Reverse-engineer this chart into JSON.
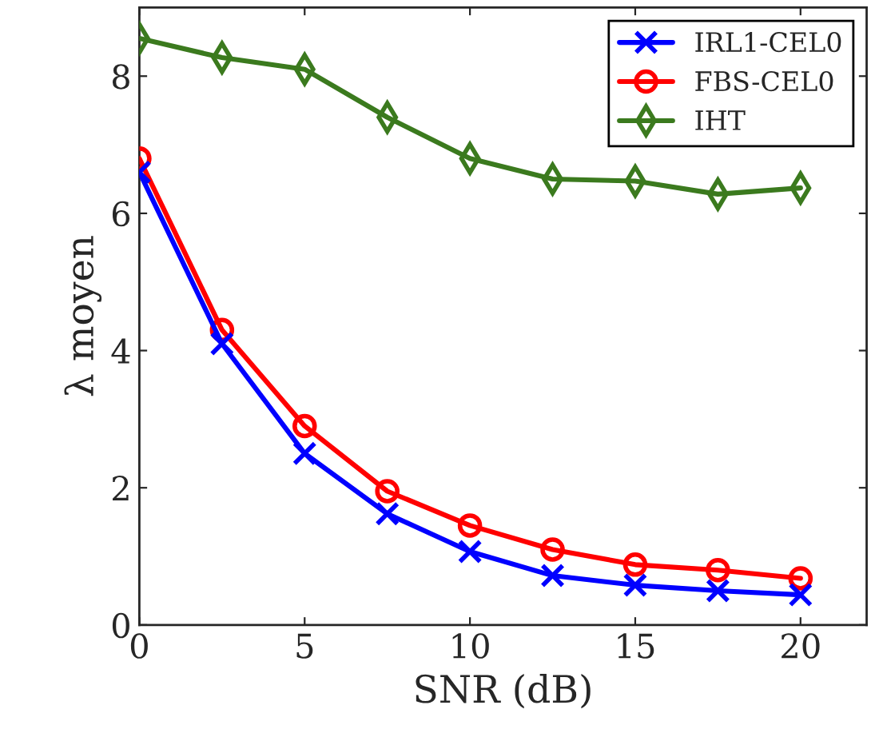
{
  "chart_data": {
    "type": "line",
    "xlabel": "SNR (dB)",
    "ylabel": "λ moyen",
    "x": [
      0,
      2.5,
      5,
      7.5,
      10,
      12.5,
      15,
      17.5,
      20
    ],
    "series": [
      {
        "name": "IRL1-CEL0",
        "color": "#0000ff",
        "marker": "cross",
        "values": [
          6.6,
          4.1,
          2.5,
          1.62,
          1.07,
          0.72,
          0.58,
          0.5,
          0.44
        ]
      },
      {
        "name": "FBS-CEL0",
        "color": "#ff0000",
        "marker": "circle",
        "values": [
          6.8,
          4.3,
          2.9,
          1.95,
          1.45,
          1.1,
          0.88,
          0.8,
          0.68
        ]
      },
      {
        "name": "IHT",
        "color": "#3b7a1e",
        "marker": "diamond",
        "values": [
          8.55,
          8.27,
          8.1,
          7.4,
          6.8,
          6.5,
          6.47,
          6.28,
          6.37
        ]
      }
    ],
    "xlim": [
      0,
      22
    ],
    "xticks": [
      0,
      5,
      10,
      15,
      20
    ],
    "ylim": [
      0,
      9
    ],
    "yticks": [
      0,
      2,
      4,
      6,
      8
    ],
    "grid": false,
    "legend": "top right",
    "line_style": "solid"
  }
}
